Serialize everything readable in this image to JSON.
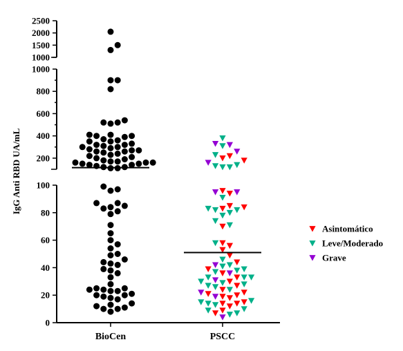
{
  "chart_data": {
    "type": "scatter",
    "ylabel": "IgG Anti RBD UA/mL",
    "xlabel": "",
    "categories": [
      "BioCen",
      "PSCC"
    ],
    "y_segments": [
      {
        "range": [
          0,
          100
        ],
        "ticks": [
          0,
          20,
          40,
          60,
          80,
          100
        ]
      },
      {
        "range": [
          100,
          1000
        ],
        "ticks": [
          200,
          400,
          600,
          800,
          1000
        ]
      },
      {
        "range": [
          1000,
          2500
        ],
        "ticks": [
          1000,
          1500,
          2000,
          2500
        ]
      }
    ],
    "tick_labels": {
      "seg0": [
        "0",
        "20",
        "40",
        "60",
        "80",
        "100"
      ],
      "seg1": [
        "200",
        "400",
        "600",
        "800",
        "1000"
      ],
      "seg2": [
        "1000",
        "1500",
        "2000",
        "2500"
      ]
    },
    "medians": [
      {
        "category": "BioCen",
        "value": 115
      },
      {
        "category": "PSCC",
        "value": 51
      }
    ],
    "legend": {
      "placement": "right",
      "entries": [
        {
          "name": "Asintomático",
          "color": "#ff0000",
          "marker": "triangle-down"
        },
        {
          "name": "Leve/Moderado",
          "color": "#00b089",
          "marker": "triangle-down"
        },
        {
          "name": "Grave",
          "color": "#9400d3",
          "marker": "triangle-down"
        }
      ]
    },
    "series": [
      {
        "category": "BioCen",
        "color": "#000000",
        "marker": "circle",
        "values": [
          2050,
          1500,
          1300,
          900,
          900,
          820,
          540,
          520,
          520,
          510,
          410,
          410,
          400,
          400,
          390,
          370,
          360,
          350,
          350,
          330,
          320,
          320,
          310,
          300,
          300,
          290,
          280,
          270,
          270,
          260,
          260,
          250,
          240,
          230,
          220,
          210,
          200,
          190,
          180,
          170,
          170,
          160,
          160,
          160,
          150,
          150,
          140,
          140,
          130,
          120,
          120,
          110,
          110,
          99,
          97,
          96,
          87,
          87,
          85,
          84,
          83,
          81,
          79,
          71,
          65,
          60,
          57,
          54,
          50,
          49,
          46,
          44,
          43,
          42,
          39,
          38,
          36,
          33,
          28,
          25,
          25,
          24,
          24,
          23,
          23,
          21,
          20,
          20,
          19,
          18,
          17,
          14,
          13,
          12,
          11,
          10,
          10,
          8
        ]
      },
      {
        "category": "PSCC",
        "group": "Asintomático",
        "color": "#ff0000",
        "marker": "triangle-down",
        "values": [
          220,
          200,
          180,
          96,
          94,
          85,
          84,
          83,
          70,
          58,
          56,
          53,
          49,
          44,
          39,
          36,
          33,
          30,
          27,
          24,
          22,
          21,
          20,
          19,
          18,
          15,
          14,
          14,
          12,
          9,
          7
        ]
      },
      {
        "category": "PSCC",
        "group": "Leve/Moderado",
        "color": "#00b089",
        "marker": "triangle-down",
        "values": [
          380,
          310,
          230,
          140,
          130,
          120,
          120,
          91,
          83,
          82,
          82,
          80,
          78,
          74,
          71,
          58,
          46,
          42,
          41,
          39,
          38,
          37,
          33,
          33,
          33,
          30,
          29,
          28,
          27,
          26,
          24,
          16,
          15,
          14,
          13,
          10,
          9,
          7,
          6
        ]
      },
      {
        "category": "PSCC",
        "group": "Grave",
        "color": "#9400d3",
        "marker": "triangle-down",
        "values": [
          330,
          320,
          260,
          160,
          95,
          95,
          42,
          36,
          31,
          22,
          19,
          4
        ]
      }
    ]
  }
}
